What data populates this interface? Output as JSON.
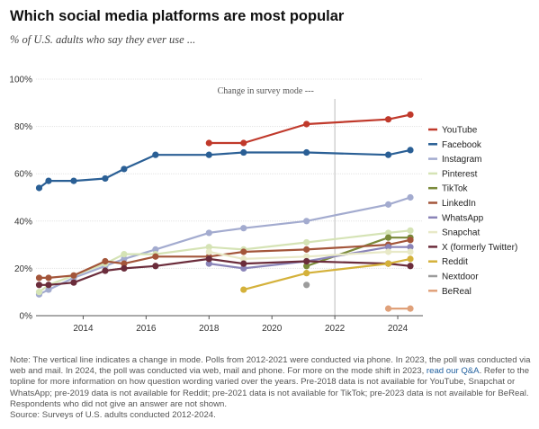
{
  "header": {
    "title": "Which social media platforms are most popular",
    "subtitle": "% of U.S. adults who say they ever use ..."
  },
  "annotations": {
    "mode_change": "Change in survey mode ---"
  },
  "notes": {
    "note_part1": "Note: The vertical line indicates a change in mode. Polls from 2012-2021 were conducted via phone. In 2023, the poll was conducted via web and mail. In 2024, the poll was conducted via web, mail and phone. For more on the mode shift in 2023,",
    "link_text": "read our Q&A",
    "note_part2": ". Refer to the topline for more information on how question wording varied over the years. Pre-2018 data is not available for YouTube, Snapchat or WhatsApp; pre-2019 data is not available for Reddit; pre-2021 data is not available for TikTok; pre-2023 data is not available for BeReal. Respondents who did not give an answer are not shown.",
    "source": "Source: Surveys of U.S. adults conducted 2012-2024."
  },
  "chart_data": {
    "type": "line",
    "x_unit": "year",
    "xlim": [
      2012.5,
      2024.8
    ],
    "xticks": [
      2014,
      2016,
      2018,
      2020,
      2022,
      2024
    ],
    "ylim": [
      0,
      100
    ],
    "yticks": [
      0,
      20,
      40,
      60,
      80,
      100
    ],
    "ytick_labels": [
      "0%",
      "20%",
      "40%",
      "60%",
      "80%",
      "100%"
    ],
    "grid": true,
    "mode_change_year": 2022,
    "legend_position": "right",
    "series": [
      {
        "name": "YouTube",
        "color": "#c0392b",
        "x": [
          2018.0,
          2019.1,
          2021.1,
          2023.7,
          2024.4
        ],
        "y": [
          73,
          73,
          81,
          83,
          85
        ]
      },
      {
        "name": "Facebook",
        "color": "#2a5f95",
        "x": [
          2012.6,
          2012.9,
          2013.7,
          2014.7,
          2015.3,
          2016.3,
          2018.0,
          2019.1,
          2021.1,
          2023.7,
          2024.4
        ],
        "y": [
          54,
          57,
          57,
          58,
          62,
          68,
          68,
          69,
          69,
          68,
          70
        ]
      },
      {
        "name": "Instagram",
        "color": "#a3abcf",
        "x": [
          2012.6,
          2012.9,
          2013.7,
          2014.7,
          2015.3,
          2016.3,
          2018.0,
          2019.1,
          2021.1,
          2023.7,
          2024.4
        ],
        "y": [
          9,
          11,
          16,
          21,
          24,
          28,
          35,
          37,
          40,
          47,
          50
        ]
      },
      {
        "name": "Pinterest",
        "color": "#d5e3b5",
        "x": [
          2012.6,
          2012.9,
          2013.7,
          2014.7,
          2015.3,
          2016.3,
          2018.0,
          2019.1,
          2021.1,
          2023.7,
          2024.4
        ],
        "y": [
          10,
          13,
          17,
          22,
          26,
          26,
          29,
          28,
          31,
          35,
          36
        ]
      },
      {
        "name": "TikTok",
        "color": "#7a8a3a",
        "x": [
          2021.1,
          2023.7,
          2024.4
        ],
        "y": [
          21,
          33,
          33
        ]
      },
      {
        "name": "LinkedIn",
        "color": "#a3553a",
        "x": [
          2012.6,
          2012.9,
          2013.7,
          2014.7,
          2015.3,
          2016.3,
          2018.0,
          2019.1,
          2021.1,
          2023.7,
          2024.4
        ],
        "y": [
          16,
          16,
          17,
          23,
          22,
          25,
          25,
          27,
          28,
          30,
          32
        ]
      },
      {
        "name": "WhatsApp",
        "color": "#8a84b8",
        "x": [
          2018.0,
          2019.1,
          2021.1,
          2023.7,
          2024.4
        ],
        "y": [
          22,
          20,
          23,
          29,
          29
        ]
      },
      {
        "name": "Snapchat",
        "color": "#e8e9c7",
        "x": [
          2018.0,
          2019.1,
          2021.1,
          2023.7,
          2024.4
        ],
        "y": [
          27,
          24,
          25,
          27,
          27
        ]
      },
      {
        "name": "X (formerly Twitter)",
        "color": "#6b2c3b",
        "x": [
          2012.6,
          2012.9,
          2013.7,
          2014.7,
          2015.3,
          2016.3,
          2018.0,
          2019.1,
          2021.1,
          2023.7,
          2024.4
        ],
        "y": [
          13,
          13,
          14,
          19,
          20,
          21,
          24,
          22,
          23,
          22,
          21
        ]
      },
      {
        "name": "Reddit",
        "color": "#d4b13a",
        "x": [
          2019.1,
          2021.1,
          2023.7,
          2024.4
        ],
        "y": [
          11,
          18,
          22,
          24
        ]
      },
      {
        "name": "Nextdoor",
        "color": "#9c9c9c",
        "x": [
          2021.1
        ],
        "y": [
          13
        ]
      },
      {
        "name": "BeReal",
        "color": "#e0a17a",
        "x": [
          2023.7,
          2024.4
        ],
        "y": [
          3,
          3
        ]
      }
    ]
  }
}
